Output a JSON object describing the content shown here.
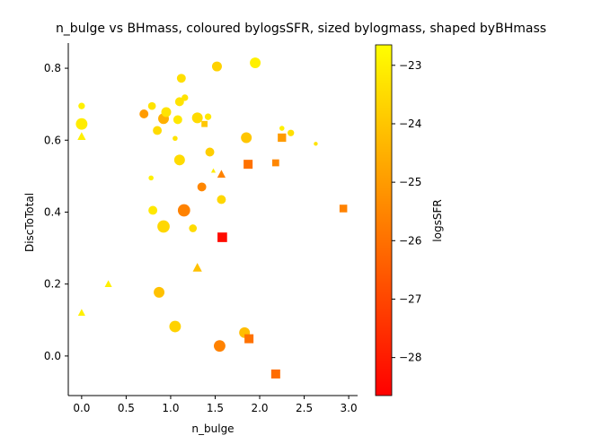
{
  "chart_data": {
    "type": "scatter",
    "title": "n_bulge vs BHmass, coloured bylogsSFR, sized bylogmass, shaped byBHmass",
    "xlabel": "n_bulge",
    "ylabel": "DiscToTotal",
    "xlim": [
      -0.15,
      3.1
    ],
    "ylim": [
      -0.11,
      0.87
    ],
    "xticks": [
      0.0,
      0.5,
      1.0,
      1.5,
      2.0,
      2.5,
      3.0
    ],
    "xtick_labels": [
      "0.0",
      "0.5",
      "1.0",
      "1.5",
      "2.0",
      "2.5",
      "3.0"
    ],
    "yticks": [
      0.0,
      0.2,
      0.4,
      0.6,
      0.8
    ],
    "ytick_labels": [
      "0.0",
      "0.2",
      "0.4",
      "0.6",
      "0.8"
    ],
    "grid": false,
    "colorbar": {
      "label": "logsSFR",
      "range": [
        -28.65,
        -22.65
      ],
      "ticks": [
        -23,
        -24,
        -25,
        -26,
        -27,
        -28
      ],
      "tick_labels": [
        "−23",
        "−24",
        "−25",
        "−26",
        "−27",
        "−28"
      ],
      "colormap": "autumn",
      "color_low": "#ff0000",
      "color_high": "#ffff00"
    },
    "points": [
      {
        "x": 0.0,
        "y": 0.695,
        "shape": "circle",
        "logsSFR": -23.0,
        "logmass": 2
      },
      {
        "x": 0.0,
        "y": 0.645,
        "shape": "circle",
        "logsSFR": -23.1,
        "logmass": 7
      },
      {
        "x": 0.0,
        "y": 0.61,
        "shape": "triangle",
        "logsSFR": -23.0,
        "logmass": 4
      },
      {
        "x": 0.0,
        "y": 0.12,
        "shape": "triangle",
        "logsSFR": -23.0,
        "logmass": 3
      },
      {
        "x": 0.3,
        "y": 0.2,
        "shape": "triangle",
        "logsSFR": -23.0,
        "logmass": 3
      },
      {
        "x": 0.7,
        "y": 0.673,
        "shape": "circle",
        "logsSFR": -25.0,
        "logmass": 4
      },
      {
        "x": 0.79,
        "y": 0.695,
        "shape": "circle",
        "logsSFR": -23.3,
        "logmass": 3
      },
      {
        "x": 0.78,
        "y": 0.495,
        "shape": "circle",
        "logsSFR": -23.0,
        "logmass": 1
      },
      {
        "x": 0.8,
        "y": 0.405,
        "shape": "circle",
        "logsSFR": -23.2,
        "logmass": 4
      },
      {
        "x": 0.85,
        "y": 0.627,
        "shape": "circle",
        "logsSFR": -23.5,
        "logmass": 4
      },
      {
        "x": 0.87,
        "y": 0.177,
        "shape": "circle",
        "logsSFR": -24.1,
        "logmass": 6
      },
      {
        "x": 0.92,
        "y": 0.66,
        "shape": "circle",
        "logsSFR": -24.5,
        "logmass": 6
      },
      {
        "x": 0.95,
        "y": 0.678,
        "shape": "circle",
        "logsSFR": -23.3,
        "logmass": 5
      },
      {
        "x": 0.92,
        "y": 0.36,
        "shape": "circle",
        "logsSFR": -23.6,
        "logmass": 8
      },
      {
        "x": 1.05,
        "y": 0.605,
        "shape": "circle",
        "logsSFR": -23.3,
        "logmass": 1
      },
      {
        "x": 1.05,
        "y": 0.082,
        "shape": "circle",
        "logsSFR": -23.7,
        "logmass": 7
      },
      {
        "x": 1.08,
        "y": 0.657,
        "shape": "circle",
        "logsSFR": -23.2,
        "logmass": 4
      },
      {
        "x": 1.1,
        "y": 0.707,
        "shape": "circle",
        "logsSFR": -23.3,
        "logmass": 4
      },
      {
        "x": 1.1,
        "y": 0.545,
        "shape": "circle",
        "logsSFR": -23.5,
        "logmass": 6
      },
      {
        "x": 1.12,
        "y": 0.772,
        "shape": "circle",
        "logsSFR": -23.4,
        "logmass": 4
      },
      {
        "x": 1.15,
        "y": 0.405,
        "shape": "circle",
        "logsSFR": -25.6,
        "logmass": 8
      },
      {
        "x": 1.16,
        "y": 0.718,
        "shape": "circle",
        "logsSFR": -23.3,
        "logmass": 2
      },
      {
        "x": 1.25,
        "y": 0.355,
        "shape": "circle",
        "logsSFR": -23.5,
        "logmass": 3
      },
      {
        "x": 1.3,
        "y": 0.662,
        "shape": "circle",
        "logsSFR": -23.5,
        "logmass": 6
      },
      {
        "x": 1.3,
        "y": 0.245,
        "shape": "triangle",
        "logsSFR": -24.1,
        "logmass": 5
      },
      {
        "x": 1.35,
        "y": 0.47,
        "shape": "circle",
        "logsSFR": -25.5,
        "logmass": 4
      },
      {
        "x": 1.38,
        "y": 0.645,
        "shape": "square",
        "logsSFR": -24.0,
        "logmass": 3
      },
      {
        "x": 1.42,
        "y": 0.665,
        "shape": "circle",
        "logsSFR": -23.2,
        "logmass": 2
      },
      {
        "x": 1.44,
        "y": 0.567,
        "shape": "circle",
        "logsSFR": -23.8,
        "logmass": 4
      },
      {
        "x": 1.48,
        "y": 0.515,
        "shape": "triangle",
        "logsSFR": -23.1,
        "logmass": 1
      },
      {
        "x": 1.52,
        "y": 0.805,
        "shape": "circle",
        "logsSFR": -23.7,
        "logmass": 5
      },
      {
        "x": 1.55,
        "y": 0.028,
        "shape": "circle",
        "logsSFR": -25.6,
        "logmass": 7
      },
      {
        "x": 1.57,
        "y": 0.505,
        "shape": "triangle",
        "logsSFR": -25.6,
        "logmass": 4
      },
      {
        "x": 1.57,
        "y": 0.435,
        "shape": "circle",
        "logsSFR": -23.6,
        "logmass": 4
      },
      {
        "x": 1.58,
        "y": 0.33,
        "shape": "square",
        "logsSFR": -28.4,
        "logmass": 8
      },
      {
        "x": 1.83,
        "y": 0.065,
        "shape": "circle",
        "logsSFR": -24.2,
        "logmass": 6
      },
      {
        "x": 1.85,
        "y": 0.607,
        "shape": "circle",
        "logsSFR": -24.0,
        "logmass": 6
      },
      {
        "x": 1.87,
        "y": 0.533,
        "shape": "square",
        "logsSFR": -26.0,
        "logmass": 7
      },
      {
        "x": 1.88,
        "y": 0.048,
        "shape": "square",
        "logsSFR": -26.0,
        "logmass": 7
      },
      {
        "x": 1.95,
        "y": 0.815,
        "shape": "circle",
        "logsSFR": -23.0,
        "logmass": 6
      },
      {
        "x": 2.18,
        "y": 0.537,
        "shape": "square",
        "logsSFR": -25.5,
        "logmass": 4
      },
      {
        "x": 2.18,
        "y": -0.05,
        "shape": "square",
        "logsSFR": -26.1,
        "logmass": 7
      },
      {
        "x": 2.25,
        "y": 0.607,
        "shape": "square",
        "logsSFR": -25.0,
        "logmass": 6
      },
      {
        "x": 2.25,
        "y": 0.633,
        "shape": "circle",
        "logsSFR": -23.0,
        "logmass": 1
      },
      {
        "x": 2.35,
        "y": 0.62,
        "shape": "circle",
        "logsSFR": -23.4,
        "logmass": 2
      },
      {
        "x": 2.63,
        "y": 0.59,
        "shape": "circle",
        "logsSFR": -23.3,
        "logmass": 0.5
      },
      {
        "x": 2.94,
        "y": 0.41,
        "shape": "square",
        "logsSFR": -25.6,
        "logmass": 5
      }
    ]
  }
}
